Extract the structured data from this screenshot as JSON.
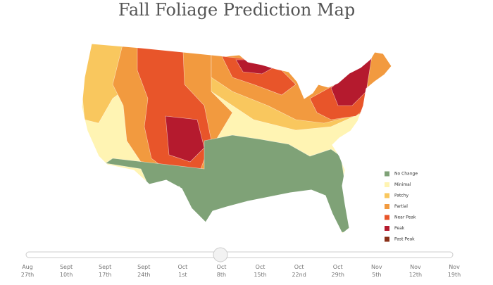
{
  "title": "Fall Foliage Prediction Map",
  "legend": [
    {
      "name": "No Change",
      "color": "#7fa277"
    },
    {
      "name": "Minimal",
      "color": "#fff4b3"
    },
    {
      "name": "Patchy",
      "color": "#f9c75e"
    },
    {
      "name": "Partial",
      "color": "#f29a3f"
    },
    {
      "name": "Near Peak",
      "color": "#e8552a"
    },
    {
      "name": "Peak",
      "color": "#b51a2e"
    },
    {
      "name": "Past Peak",
      "color": "#8a3018"
    }
  ],
  "timeline": [
    {
      "month": "Aug",
      "day": "27th"
    },
    {
      "month": "Sept",
      "day": "10th"
    },
    {
      "month": "Sept",
      "day": "17th"
    },
    {
      "month": "Sept",
      "day": "24th"
    },
    {
      "month": "Oct",
      "day": "1st"
    },
    {
      "month": "Oct",
      "day": "8th"
    },
    {
      "month": "Oct",
      "day": "15th"
    },
    {
      "month": "Oct",
      "day": "22nd"
    },
    {
      "month": "Oct",
      "day": "29th"
    },
    {
      "month": "Nov",
      "day": "5th"
    },
    {
      "month": "Nov",
      "day": "12th"
    },
    {
      "month": "Nov",
      "day": "19th"
    }
  ]
}
